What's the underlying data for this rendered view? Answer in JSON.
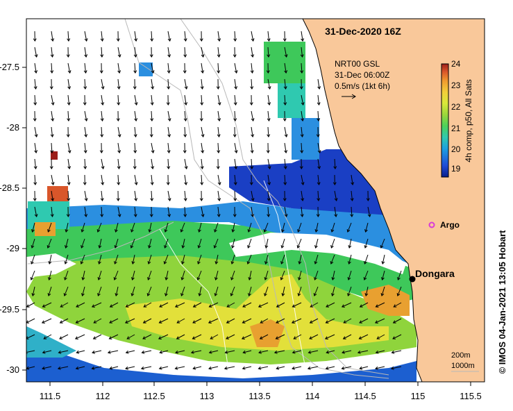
{
  "title": "31-Dec-2020 16Z",
  "vector_legend": {
    "line1": "NRT00 GSL",
    "line2": "31-Dec 06:00Z",
    "line3": "0.5m/s (1kt 6h)"
  },
  "colorbar": {
    "label": "4h comp, p50, All Sats",
    "ticks": [
      "24",
      "23",
      "22",
      "21",
      "20",
      "19"
    ],
    "colors": [
      "#081d8a",
      "#1f4bd6",
      "#1c9fe0",
      "#2fc9b0",
      "#4bd15a",
      "#9ad63b",
      "#d8e83a",
      "#f2cf3a",
      "#f09a2e",
      "#d9562a",
      "#9c1e1a"
    ]
  },
  "argo_label": "Argo",
  "place_label": "Dongara",
  "depth_contours": {
    "label1": "200m",
    "label2": "1000m"
  },
  "credit": "© IMOS 04-Jan-2021 13:05 Hobart",
  "x_ticks": [
    "111.5",
    "112",
    "112.5",
    "113",
    "113.5",
    "114",
    "114.5",
    "115",
    "115.5"
  ],
  "y_ticks": [
    "-27.5",
    "-28",
    "-28.5",
    "-29",
    "-29.5",
    "-30"
  ],
  "colors": {
    "land": "#f9c89a",
    "background": "#ffffff",
    "argo": "#d93ad9"
  }
}
